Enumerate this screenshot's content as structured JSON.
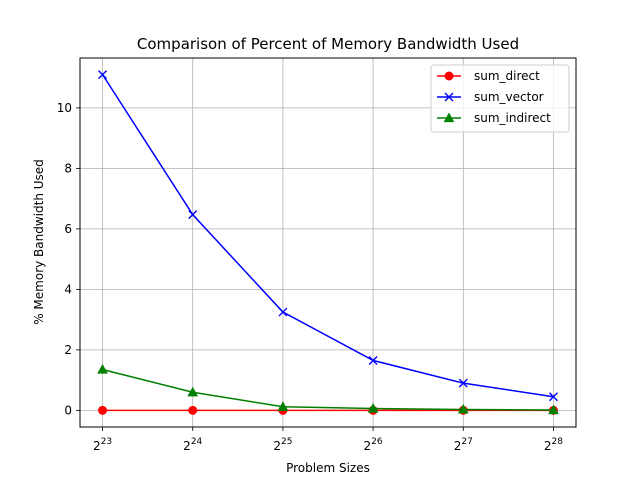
{
  "chart_data": {
    "type": "line",
    "title": "Comparison of Percent of Memory Bandwidth Used",
    "xlabel": "Problem Sizes",
    "ylabel": "% Memory Bandwidth Used",
    "x_scale": "log2",
    "x_ticks": [
      {
        "base": "2",
        "exp": "23",
        "value": 8388608
      },
      {
        "base": "2",
        "exp": "24",
        "value": 16777216
      },
      {
        "base": "2",
        "exp": "25",
        "value": 33554432
      },
      {
        "base": "2",
        "exp": "26",
        "value": 67108864
      },
      {
        "base": "2",
        "exp": "27",
        "value": 134217728
      },
      {
        "base": "2",
        "exp": "28",
        "value": 268435456
      }
    ],
    "x": [
      8388608,
      16777216,
      33554432,
      67108864,
      134217728,
      268435456
    ],
    "y_ticks": [
      "0",
      "2",
      "4",
      "6",
      "8",
      "10"
    ],
    "ylim": [
      -0.55,
      11.65
    ],
    "grid": true,
    "legend_position": "top-right",
    "series": [
      {
        "name": "sum_direct",
        "color": "#ff0000",
        "marker": "circle",
        "values": [
          0.0,
          0.0,
          0.0,
          0.0,
          0.0,
          0.0
        ]
      },
      {
        "name": "sum_vector",
        "color": "#0000ff",
        "marker": "x",
        "values": [
          11.1,
          6.47,
          3.25,
          1.65,
          0.9,
          0.45
        ]
      },
      {
        "name": "sum_indirect",
        "color": "#008000",
        "marker": "triangle",
        "values": [
          1.35,
          0.6,
          0.12,
          0.06,
          0.03,
          0.01
        ]
      }
    ]
  }
}
